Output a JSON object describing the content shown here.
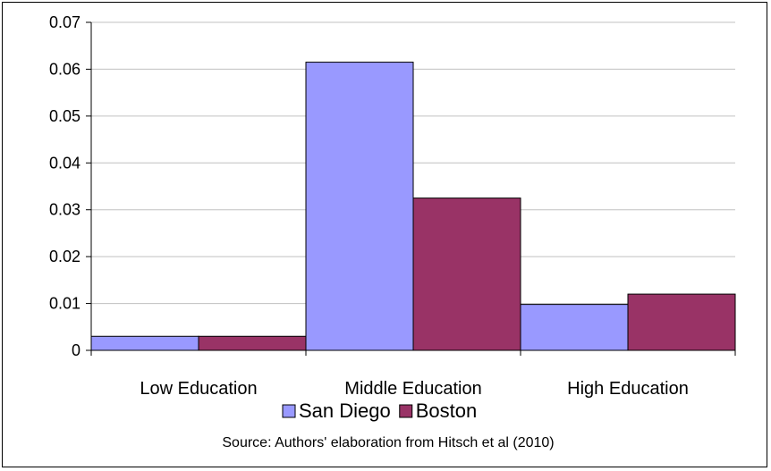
{
  "chart_data": {
    "type": "bar",
    "categories": [
      "Low Education",
      "Middle Education",
      "High Education"
    ],
    "series": [
      {
        "name": "San Diego",
        "values": [
          0.003,
          0.0615,
          0.0098
        ],
        "color": "#9999ff"
      },
      {
        "name": "Boston",
        "values": [
          0.003,
          0.0325,
          0.012
        ],
        "color": "#993366"
      }
    ],
    "ylim": [
      0,
      0.07
    ],
    "yticks": [
      "0",
      "0.01",
      "0.02",
      "0.03",
      "0.04",
      "0.05",
      "0.06",
      "0.07"
    ],
    "grid": true,
    "legend_position": "bottom",
    "source_note": "Source: Authors' elaboration from Hitsch et al (2010)"
  }
}
